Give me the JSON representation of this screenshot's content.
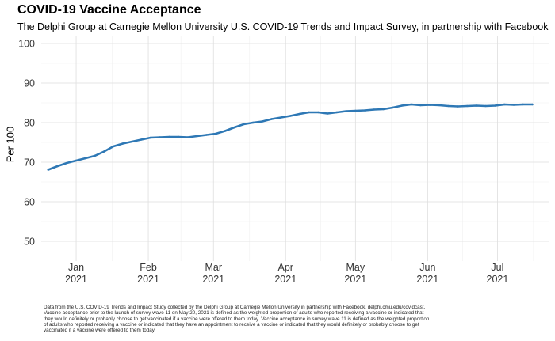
{
  "chart_data": {
    "type": "line",
    "title": "COVID-19 Vaccine Acceptance",
    "subtitle": "The Delphi Group at Carnegie Mellon University U.S. COVID-19 Trends and Impact Survey, in partnership with Facebook",
    "ylabel": "Per 100",
    "xlabel": "",
    "ylim": [
      45,
      102
    ],
    "y_ticks": [
      50,
      60,
      70,
      80,
      90,
      100
    ],
    "x_ticks": [
      {
        "month": "Jan",
        "year": "2021",
        "date": "2021-01-01"
      },
      {
        "month": "Feb",
        "year": "2021",
        "date": "2021-02-01"
      },
      {
        "month": "Mar",
        "year": "2021",
        "date": "2021-03-01"
      },
      {
        "month": "Apr",
        "year": "2021",
        "date": "2021-04-01"
      },
      {
        "month": "May",
        "year": "2021",
        "date": "2021-05-01"
      },
      {
        "month": "Jun",
        "year": "2021",
        "date": "2021-06-01"
      },
      {
        "month": "Jul",
        "year": "2021",
        "date": "2021-07-01"
      }
    ],
    "xlim": [
      "2020-12-17",
      "2021-07-23"
    ],
    "grid": true,
    "line_color": "#2e78b5",
    "x": [
      "2020-12-20",
      "2020-12-24",
      "2020-12-28",
      "2021-01-01",
      "2021-01-05",
      "2021-01-09",
      "2021-01-13",
      "2021-01-17",
      "2021-01-21",
      "2021-01-25",
      "2021-01-29",
      "2021-02-02",
      "2021-02-06",
      "2021-02-10",
      "2021-02-14",
      "2021-02-18",
      "2021-02-22",
      "2021-02-26",
      "2021-03-02",
      "2021-03-06",
      "2021-03-10",
      "2021-03-14",
      "2021-03-18",
      "2021-03-22",
      "2021-03-26",
      "2021-03-30",
      "2021-04-03",
      "2021-04-07",
      "2021-04-11",
      "2021-04-15",
      "2021-04-19",
      "2021-04-23",
      "2021-04-27",
      "2021-05-01",
      "2021-05-05",
      "2021-05-09",
      "2021-05-13",
      "2021-05-17",
      "2021-05-21",
      "2021-05-25",
      "2021-05-29",
      "2021-06-02",
      "2021-06-06",
      "2021-06-10",
      "2021-06-14",
      "2021-06-18",
      "2021-06-22",
      "2021-06-26",
      "2021-06-30",
      "2021-07-04",
      "2021-07-08",
      "2021-07-12",
      "2021-07-16"
    ],
    "y": [
      68.1,
      69.0,
      69.8,
      70.4,
      71.0,
      71.6,
      72.7,
      74.0,
      74.7,
      75.2,
      75.7,
      76.2,
      76.3,
      76.4,
      76.4,
      76.3,
      76.6,
      76.9,
      77.2,
      77.9,
      78.8,
      79.6,
      80.0,
      80.3,
      80.9,
      81.3,
      81.7,
      82.2,
      82.6,
      82.6,
      82.3,
      82.6,
      82.9,
      83.0,
      83.1,
      83.3,
      83.4,
      83.8,
      84.3,
      84.6,
      84.4,
      84.5,
      84.4,
      84.2,
      84.1,
      84.2,
      84.3,
      84.2,
      84.3,
      84.6,
      84.5,
      84.6,
      84.6
    ]
  },
  "footnote": [
    "Data from the U.S. COVID-19 Trends and Impact Study collected by the Delphi Group at Carnegie Mellon University in partnership with Facebook. delphi.cmu.edu/covidcast.",
    "Vaccine acceptance prior to the launch of survey wave 11 on May 20, 2021 is defined as the weighted proportion of adults who reported receiving a vaccine or indicated that",
    "they would definitely or probably choose to get vaccinated if a vaccine were offered to them today. Vaccine acceptance in survey wave 11 is defined as the weighted proportion",
    "of adults who reported receiving a vaccine or indicated that they have an appointment to receive a vaccine or indicated that they would definitely or probably choose to get",
    "vaccinated if a vaccine were offered to them today."
  ]
}
